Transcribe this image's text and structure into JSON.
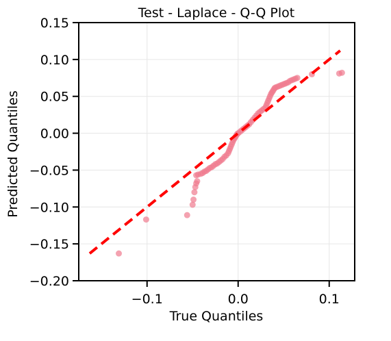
{
  "chart_data": {
    "type": "scatter",
    "title": "Test - Laplace - Q-Q Plot",
    "xlabel": "True Quantiles",
    "ylabel": "Predicted Quantiles",
    "xlim": [
      -0.175,
      0.128
    ],
    "ylim": [
      -0.2,
      0.15
    ],
    "x_ticks": [
      -0.1,
      0.0,
      0.1
    ],
    "x_tick_labels": [
      "−0.1",
      "0.0",
      "0.1"
    ],
    "y_ticks": [
      -0.2,
      -0.15,
      -0.1,
      -0.05,
      0.0,
      0.05,
      0.1,
      0.15
    ],
    "y_tick_labels": [
      "−0.20",
      "−0.15",
      "−0.10",
      "−0.05",
      "0.00",
      "0.05",
      "0.10",
      "0.15"
    ],
    "grid": true,
    "point_color": "#f07a8f",
    "reference_line": {
      "style": "dashed",
      "color": "#ff0000",
      "x": [
        -0.163,
        0.112
      ],
      "y": [
        -0.163,
        0.112
      ]
    },
    "series": [
      {
        "points": [
          [
            -0.131,
            -0.163
          ],
          [
            -0.101,
            -0.117
          ],
          [
            -0.056,
            -0.111
          ],
          [
            -0.05,
            -0.097
          ],
          [
            -0.049,
            -0.09
          ],
          [
            -0.048,
            -0.08
          ],
          [
            -0.047,
            -0.073
          ],
          [
            -0.046,
            -0.068
          ],
          [
            -0.045,
            -0.065
          ],
          [
            -0.046,
            -0.057
          ],
          [
            -0.044,
            -0.056
          ],
          [
            -0.041,
            -0.055
          ],
          [
            -0.039,
            -0.054
          ],
          [
            -0.037,
            -0.052
          ],
          [
            -0.035,
            -0.051
          ],
          [
            -0.033,
            -0.049
          ],
          [
            -0.031,
            -0.047
          ],
          [
            -0.029,
            -0.046
          ],
          [
            -0.027,
            -0.044
          ],
          [
            -0.025,
            -0.042
          ],
          [
            -0.023,
            -0.041
          ],
          [
            -0.021,
            -0.039
          ],
          [
            -0.019,
            -0.037
          ],
          [
            -0.017,
            -0.035
          ],
          [
            -0.015,
            -0.032
          ],
          [
            -0.013,
            -0.03
          ],
          [
            -0.011,
            -0.027
          ],
          [
            -0.01,
            -0.024
          ],
          [
            -0.009,
            -0.021
          ],
          [
            -0.008,
            -0.018
          ],
          [
            -0.007,
            -0.015
          ],
          [
            -0.006,
            -0.012
          ],
          [
            -0.005,
            -0.009
          ],
          [
            -0.004,
            -0.007
          ],
          [
            -0.003,
            -0.005
          ],
          [
            -0.002,
            -0.003
          ],
          [
            -0.001,
            -0.001
          ],
          [
            0.0,
            0.0
          ],
          [
            0.002,
            0.002
          ],
          [
            0.004,
            0.004
          ],
          [
            0.006,
            0.006
          ],
          [
            0.008,
            0.008
          ],
          [
            0.01,
            0.01
          ],
          [
            0.012,
            0.012
          ],
          [
            0.014,
            0.015
          ],
          [
            0.016,
            0.018
          ],
          [
            0.018,
            0.021
          ],
          [
            0.02,
            0.024
          ],
          [
            0.022,
            0.027
          ],
          [
            0.024,
            0.029
          ],
          [
            0.026,
            0.031
          ],
          [
            0.028,
            0.033
          ],
          [
            0.03,
            0.035
          ],
          [
            0.031,
            0.038
          ],
          [
            0.032,
            0.041
          ],
          [
            0.033,
            0.044
          ],
          [
            0.034,
            0.047
          ],
          [
            0.035,
            0.05
          ],
          [
            0.036,
            0.053
          ],
          [
            0.037,
            0.055
          ],
          [
            0.038,
            0.057
          ],
          [
            0.039,
            0.059
          ],
          [
            0.04,
            0.061
          ],
          [
            0.041,
            0.062
          ],
          [
            0.043,
            0.063
          ],
          [
            0.045,
            0.064
          ],
          [
            0.047,
            0.065
          ],
          [
            0.049,
            0.066
          ],
          [
            0.051,
            0.067
          ],
          [
            0.053,
            0.068
          ],
          [
            0.055,
            0.069
          ],
          [
            0.057,
            0.071
          ],
          [
            0.059,
            0.072
          ],
          [
            0.061,
            0.073
          ],
          [
            0.063,
            0.074
          ],
          [
            0.065,
            0.075
          ],
          [
            0.081,
            0.08
          ],
          [
            0.111,
            0.081
          ],
          [
            0.114,
            0.082
          ]
        ]
      }
    ]
  }
}
